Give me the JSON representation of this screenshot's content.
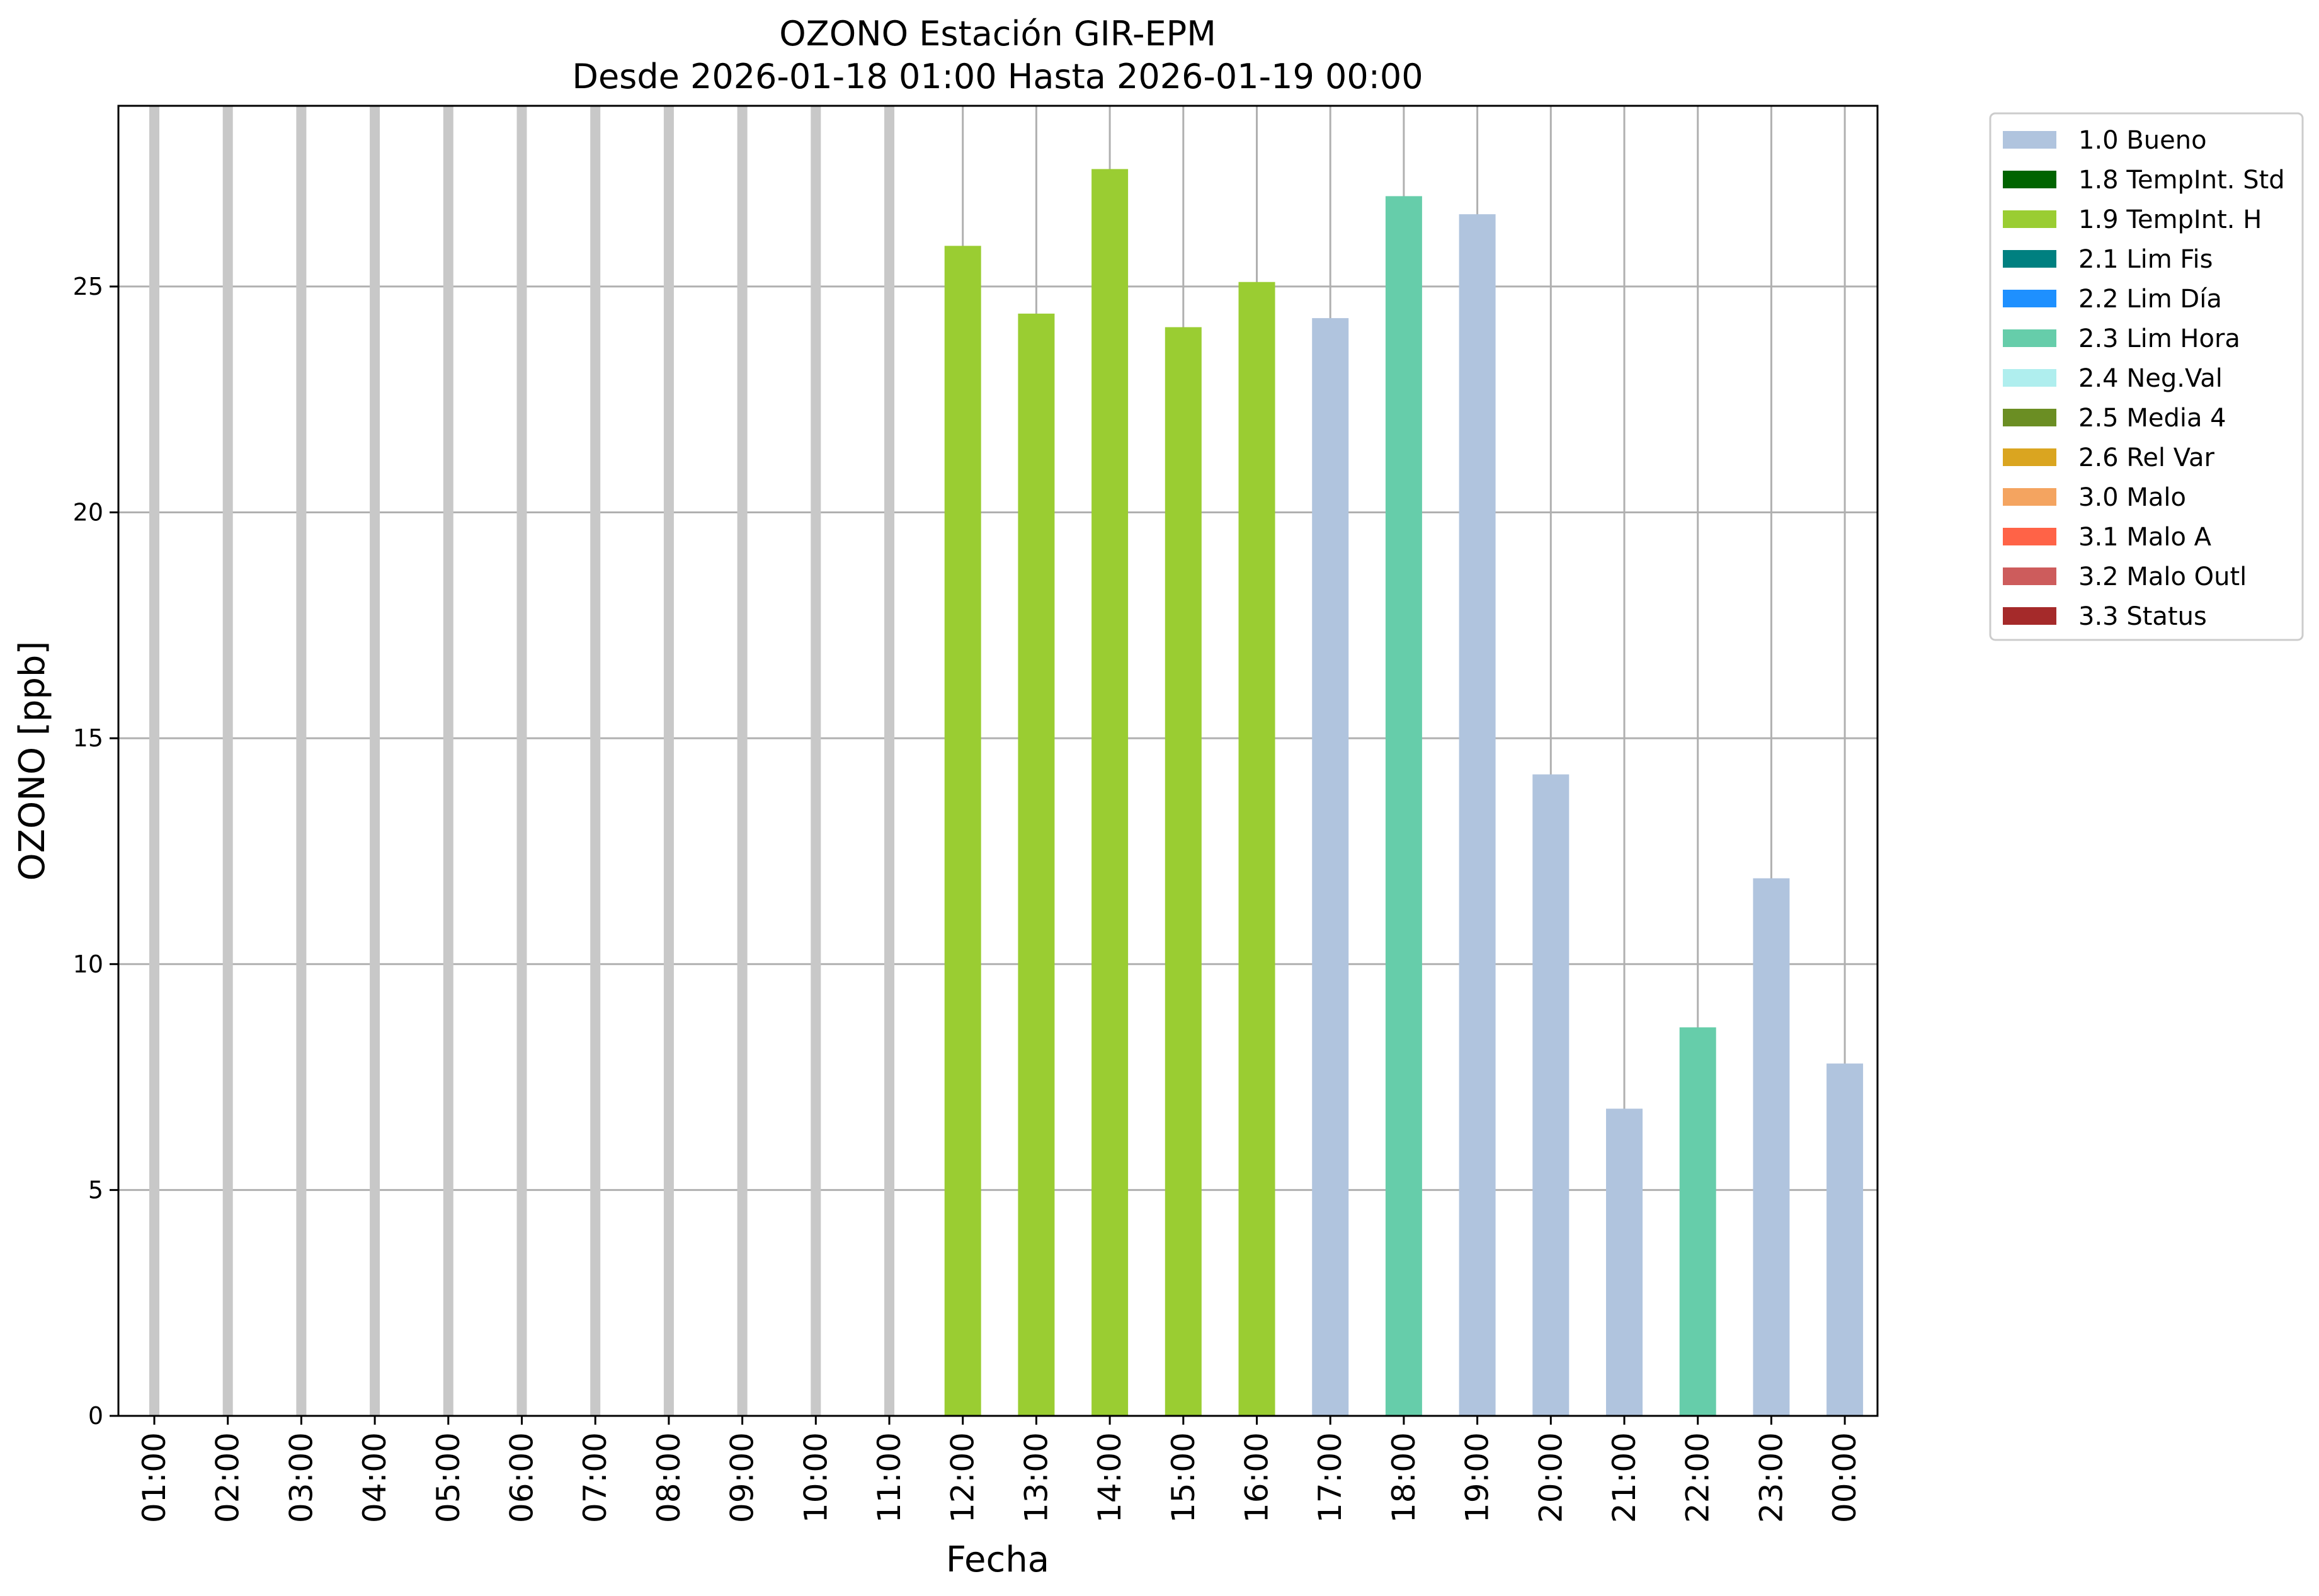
{
  "chart_data": {
    "type": "bar",
    "title": "OZONO Estación GIR-EPM",
    "subtitle": "Desde 2026-01-18 01:00 Hasta 2026-01-19 00:00",
    "xlabel": "Fecha",
    "ylabel": "OZONO [ppb]",
    "ylim": [
      0,
      29
    ],
    "yticks": [
      0,
      5,
      10,
      15,
      20,
      25
    ],
    "grid": true,
    "legend_position": "outside-top-right",
    "categories": [
      "01:00",
      "02:00",
      "03:00",
      "04:00",
      "05:00",
      "06:00",
      "07:00",
      "08:00",
      "09:00",
      "10:00",
      "11:00",
      "12:00",
      "13:00",
      "14:00",
      "15:00",
      "16:00",
      "17:00",
      "18:00",
      "19:00",
      "20:00",
      "21:00",
      "22:00",
      "23:00",
      "00:00"
    ],
    "values": [
      null,
      null,
      null,
      null,
      null,
      null,
      null,
      null,
      null,
      null,
      null,
      25.9,
      24.4,
      27.6,
      24.1,
      25.1,
      24.3,
      27.0,
      26.6,
      14.2,
      6.8,
      8.6,
      11.9,
      7.8
    ],
    "flags": [
      null,
      null,
      null,
      null,
      null,
      null,
      null,
      null,
      null,
      null,
      null,
      "1.9 TempInt. H",
      "1.9 TempInt. H",
      "1.9 TempInt. H",
      "1.9 TempInt. H",
      "1.9 TempInt. H",
      "1.0 Bueno",
      "2.3 Lim Hora",
      "1.0 Bueno",
      "1.0 Bueno",
      "1.0 Bueno",
      "2.3 Lim Hora",
      "1.0 Bueno",
      "1.0 Bueno"
    ],
    "missing_marker_color": "#c8c8c8",
    "legend": [
      {
        "label": "1.0 Bueno",
        "color": "#b0c4de"
      },
      {
        "label": "1.8 TempInt. Std",
        "color": "#006400"
      },
      {
        "label": "1.9 TempInt. H",
        "color": "#9acd32"
      },
      {
        "label": "2.1 Lim Fis",
        "color": "#008080"
      },
      {
        "label": "2.2 Lim Día",
        "color": "#1e90ff"
      },
      {
        "label": "2.3 Lim Hora",
        "color": "#66cdaa"
      },
      {
        "label": "2.4 Neg.Val",
        "color": "#afeeee"
      },
      {
        "label": "2.5 Media 4",
        "color": "#6b8e23"
      },
      {
        "label": "2.6 Rel Var",
        "color": "#daa520"
      },
      {
        "label": "3.0 Malo",
        "color": "#f4a460"
      },
      {
        "label": "3.1 Malo A",
        "color": "#ff6347"
      },
      {
        "label": "3.2 Malo Outl",
        "color": "#cd5c5c"
      },
      {
        "label": "3.3 Status",
        "color": "#a52a2a"
      }
    ]
  }
}
